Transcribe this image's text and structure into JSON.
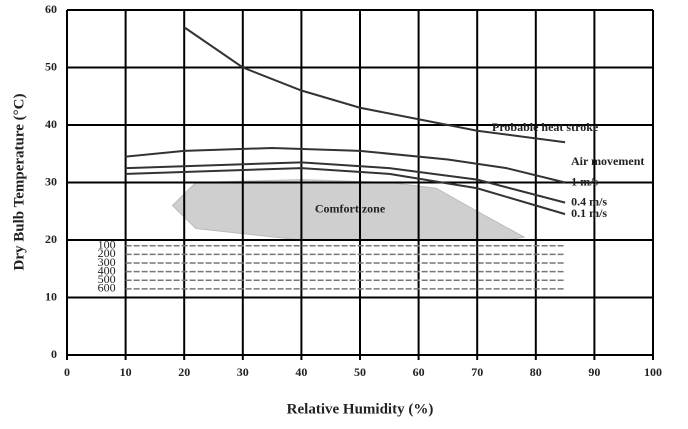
{
  "chart_data": {
    "type": "line",
    "xlabel": "Relative Humidity (%)",
    "ylabel": "Dry Bulb Temperature (°C)",
    "xlim": [
      0,
      100
    ],
    "ylim": [
      0,
      60
    ],
    "xticks": [
      0,
      10,
      20,
      30,
      40,
      50,
      60,
      70,
      80,
      90,
      100
    ],
    "yticks": [
      0,
      10,
      20,
      30,
      40,
      50,
      60
    ],
    "grid": true,
    "series": [
      {
        "name": "Probable heat stroke",
        "color": "#333333",
        "x": [
          20,
          30,
          40,
          50,
          60,
          70,
          85
        ],
        "values": [
          57,
          50,
          46,
          43,
          41,
          39,
          37
        ]
      },
      {
        "name": "1 m/s",
        "color": "#333333",
        "x": [
          10,
          20,
          35,
          50,
          65,
          75,
          85
        ],
        "values": [
          34.5,
          35.5,
          36,
          35.5,
          34,
          32.5,
          30
        ]
      },
      {
        "name": "0.4 m/s",
        "color": "#333333",
        "x": [
          10,
          25,
          40,
          55,
          70,
          85
        ],
        "values": [
          32.5,
          33,
          33.5,
          32.5,
          30.5,
          26.5
        ]
      },
      {
        "name": "0.1 m/s",
        "color": "#333333",
        "x": [
          10,
          25,
          40,
          55,
          70,
          85
        ],
        "values": [
          31.5,
          32,
          32.5,
          31.5,
          29,
          24.5
        ]
      },
      {
        "name": "100",
        "color": "#777777",
        "dashed": true,
        "x": [
          10,
          85
        ],
        "values": [
          19,
          19
        ]
      },
      {
        "name": "200",
        "color": "#777777",
        "dashed": true,
        "x": [
          10,
          85
        ],
        "values": [
          17.5,
          17.5
        ]
      },
      {
        "name": "300",
        "color": "#777777",
        "dashed": true,
        "x": [
          10,
          85
        ],
        "values": [
          16,
          16
        ]
      },
      {
        "name": "400",
        "color": "#777777",
        "dashed": true,
        "x": [
          10,
          85
        ],
        "values": [
          14.5,
          14.5
        ]
      },
      {
        "name": "500",
        "color": "#777777",
        "dashed": true,
        "x": [
          10,
          85
        ],
        "values": [
          13,
          13
        ]
      },
      {
        "name": "600",
        "color": "#777777",
        "dashed": true,
        "x": [
          10,
          85
        ],
        "values": [
          11.5,
          11.5
        ]
      }
    ],
    "comfort_zone": {
      "name": "Comfort zone",
      "color": "#cfcfcf",
      "x": [
        18,
        22,
        40,
        55,
        63,
        70,
        78,
        75,
        40,
        22
      ],
      "values": [
        26,
        30,
        30.5,
        30,
        29,
        25,
        20.5,
        20,
        20,
        22
      ]
    },
    "annotations": [
      "Air movement"
    ]
  }
}
